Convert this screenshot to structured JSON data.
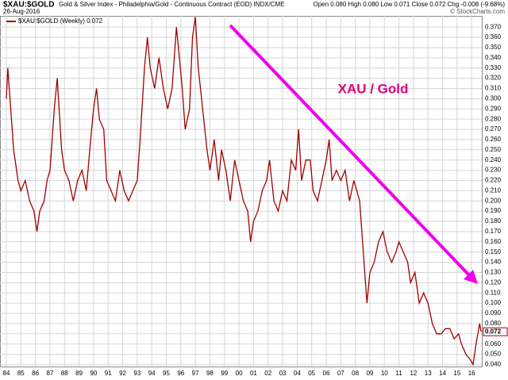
{
  "chart_data": {
    "type": "line",
    "symbol": "$XAU:$GOLD",
    "description": "Gold & Silver Index - Philadelphia/Gold - Continuous Contract (EOD) INDX/CME",
    "date": "26-Aug-2016",
    "quote": "Open 0.080  High 0.080  Low 0.071  Close 0.072  Chg -0.008 (-9.68%)",
    "credit": "© StockCharts.com",
    "annotation": "XAU / Gold",
    "last_label": "0.072",
    "grid": true,
    "xlim": [
      1984,
      2016.7
    ],
    "ylim": [
      0.038,
      0.381
    ],
    "xticks": [
      {
        "value": 1984,
        "label": "84"
      },
      {
        "value": 1985,
        "label": "85"
      },
      {
        "value": 1986,
        "label": "86"
      },
      {
        "value": 1987,
        "label": "87"
      },
      {
        "value": 1988,
        "label": "88"
      },
      {
        "value": 1989,
        "label": "89"
      },
      {
        "value": 1990,
        "label": "90"
      },
      {
        "value": 1991,
        "label": "91"
      },
      {
        "value": 1992,
        "label": "92"
      },
      {
        "value": 1993,
        "label": "93"
      },
      {
        "value": 1994,
        "label": "94"
      },
      {
        "value": 1995,
        "label": "95"
      },
      {
        "value": 1996,
        "label": "96"
      },
      {
        "value": 1997,
        "label": "97"
      },
      {
        "value": 1998,
        "label": "98"
      },
      {
        "value": 1999,
        "label": "99"
      },
      {
        "value": 2000,
        "label": "00"
      },
      {
        "value": 2001,
        "label": "01"
      },
      {
        "value": 2002,
        "label": "02"
      },
      {
        "value": 2003,
        "label": "03"
      },
      {
        "value": 2004,
        "label": "04"
      },
      {
        "value": 2005,
        "label": "05"
      },
      {
        "value": 2006,
        "label": "06"
      },
      {
        "value": 2007,
        "label": "07"
      },
      {
        "value": 2008,
        "label": "08"
      },
      {
        "value": 2009,
        "label": "09"
      },
      {
        "value": 2010,
        "label": "10"
      },
      {
        "value": 2011,
        "label": "11"
      },
      {
        "value": 2012,
        "label": "12"
      },
      {
        "value": 2013,
        "label": "13"
      },
      {
        "value": 2014,
        "label": "14"
      },
      {
        "value": 2015,
        "label": "15"
      },
      {
        "value": 2016,
        "label": "16"
      }
    ],
    "yticks": [
      {
        "value": 0.04,
        "label": "0.040"
      },
      {
        "value": 0.05,
        "label": "0.050"
      },
      {
        "value": 0.06,
        "label": "0.060"
      },
      {
        "value": 0.07,
        "label": "0.070"
      },
      {
        "value": 0.08,
        "label": "0.080"
      },
      {
        "value": 0.09,
        "label": "0.090"
      },
      {
        "value": 0.1,
        "label": "0.100"
      },
      {
        "value": 0.11,
        "label": "0.110"
      },
      {
        "value": 0.12,
        "label": "0.120"
      },
      {
        "value": 0.13,
        "label": "0.130"
      },
      {
        "value": 0.14,
        "label": "0.140"
      },
      {
        "value": 0.15,
        "label": "0.150"
      },
      {
        "value": 0.16,
        "label": "0.160"
      },
      {
        "value": 0.17,
        "label": "0.170"
      },
      {
        "value": 0.18,
        "label": "0.180"
      },
      {
        "value": 0.19,
        "label": "0.190"
      },
      {
        "value": 0.2,
        "label": "0.200"
      },
      {
        "value": 0.21,
        "label": "0.210"
      },
      {
        "value": 0.22,
        "label": "0.220"
      },
      {
        "value": 0.23,
        "label": "0.230"
      },
      {
        "value": 0.24,
        "label": "0.240"
      },
      {
        "value": 0.25,
        "label": "0.250"
      },
      {
        "value": 0.26,
        "label": "0.260"
      },
      {
        "value": 0.27,
        "label": "0.270"
      },
      {
        "value": 0.28,
        "label": "0.280"
      },
      {
        "value": 0.29,
        "label": "0.290"
      },
      {
        "value": 0.3,
        "label": "0.300"
      },
      {
        "value": 0.31,
        "label": "0.310"
      },
      {
        "value": 0.32,
        "label": "0.320"
      },
      {
        "value": 0.33,
        "label": "0.330"
      },
      {
        "value": 0.34,
        "label": "0.340"
      },
      {
        "value": 0.35,
        "label": "0.350"
      },
      {
        "value": 0.36,
        "label": "0.360"
      },
      {
        "value": 0.37,
        "label": "0.370"
      }
    ],
    "x": [
      1984.0,
      1984.1,
      1984.3,
      1984.5,
      1984.8,
      1985.0,
      1985.3,
      1985.6,
      1985.9,
      1986.1,
      1986.3,
      1986.6,
      1986.8,
      1987.0,
      1987.3,
      1987.5,
      1987.8,
      1988.0,
      1988.3,
      1988.6,
      1988.9,
      1989.2,
      1989.5,
      1989.8,
      1990.0,
      1990.2,
      1990.4,
      1990.7,
      1990.9,
      1991.2,
      1991.5,
      1991.8,
      1992.1,
      1992.4,
      1992.7,
      1993.0,
      1993.2,
      1993.5,
      1993.7,
      1993.9,
      1994.2,
      1994.5,
      1994.8,
      1995.1,
      1995.4,
      1995.7,
      1995.9,
      1996.1,
      1996.3,
      1996.6,
      1996.8,
      1997.0,
      1997.2,
      1997.5,
      1997.8,
      1998.0,
      1998.3,
      1998.6,
      1998.8,
      1999.1,
      1999.4,
      1999.7,
      2000.0,
      2000.3,
      2000.6,
      2000.8,
      2001.0,
      2001.3,
      2001.6,
      2001.9,
      2002.1,
      2002.4,
      2002.7,
      2003.0,
      2003.3,
      2003.6,
      2003.9,
      2004.1,
      2004.3,
      2004.6,
      2004.9,
      2005.1,
      2005.4,
      2005.7,
      2006.0,
      2006.2,
      2006.4,
      2006.7,
      2007.0,
      2007.3,
      2007.6,
      2007.9,
      2008.1,
      2008.3,
      2008.6,
      2008.8,
      2009.0,
      2009.3,
      2009.6,
      2009.9,
      2010.2,
      2010.5,
      2010.8,
      2011.0,
      2011.3,
      2011.6,
      2011.8,
      2012.1,
      2012.4,
      2012.7,
      2013.0,
      2013.3,
      2013.6,
      2013.9,
      2014.2,
      2014.5,
      2014.8,
      2015.1,
      2015.3,
      2015.6,
      2015.9,
      2016.1,
      2016.3,
      2016.55,
      2016.65
    ],
    "series": [
      {
        "name": "$XAU:$GOLD (Weekly) 0.072",
        "color": "#a00000",
        "values": [
          0.3,
          0.33,
          0.29,
          0.25,
          0.22,
          0.21,
          0.22,
          0.2,
          0.19,
          0.17,
          0.19,
          0.2,
          0.22,
          0.23,
          0.29,
          0.32,
          0.25,
          0.23,
          0.22,
          0.2,
          0.22,
          0.23,
          0.21,
          0.26,
          0.29,
          0.31,
          0.28,
          0.27,
          0.22,
          0.21,
          0.2,
          0.23,
          0.21,
          0.2,
          0.21,
          0.22,
          0.26,
          0.33,
          0.36,
          0.33,
          0.31,
          0.34,
          0.31,
          0.29,
          0.31,
          0.37,
          0.34,
          0.31,
          0.27,
          0.29,
          0.36,
          0.38,
          0.33,
          0.29,
          0.25,
          0.23,
          0.26,
          0.22,
          0.25,
          0.23,
          0.2,
          0.24,
          0.22,
          0.2,
          0.19,
          0.16,
          0.18,
          0.19,
          0.21,
          0.22,
          0.24,
          0.2,
          0.19,
          0.21,
          0.2,
          0.24,
          0.23,
          0.27,
          0.22,
          0.24,
          0.24,
          0.21,
          0.2,
          0.22,
          0.24,
          0.26,
          0.22,
          0.23,
          0.22,
          0.23,
          0.2,
          0.22,
          0.21,
          0.2,
          0.14,
          0.1,
          0.13,
          0.14,
          0.16,
          0.17,
          0.15,
          0.14,
          0.15,
          0.16,
          0.15,
          0.14,
          0.12,
          0.13,
          0.1,
          0.11,
          0.1,
          0.08,
          0.07,
          0.07,
          0.075,
          0.075,
          0.065,
          0.07,
          0.06,
          0.05,
          0.045,
          0.04,
          0.06,
          0.08,
          0.072
        ]
      }
    ]
  }
}
